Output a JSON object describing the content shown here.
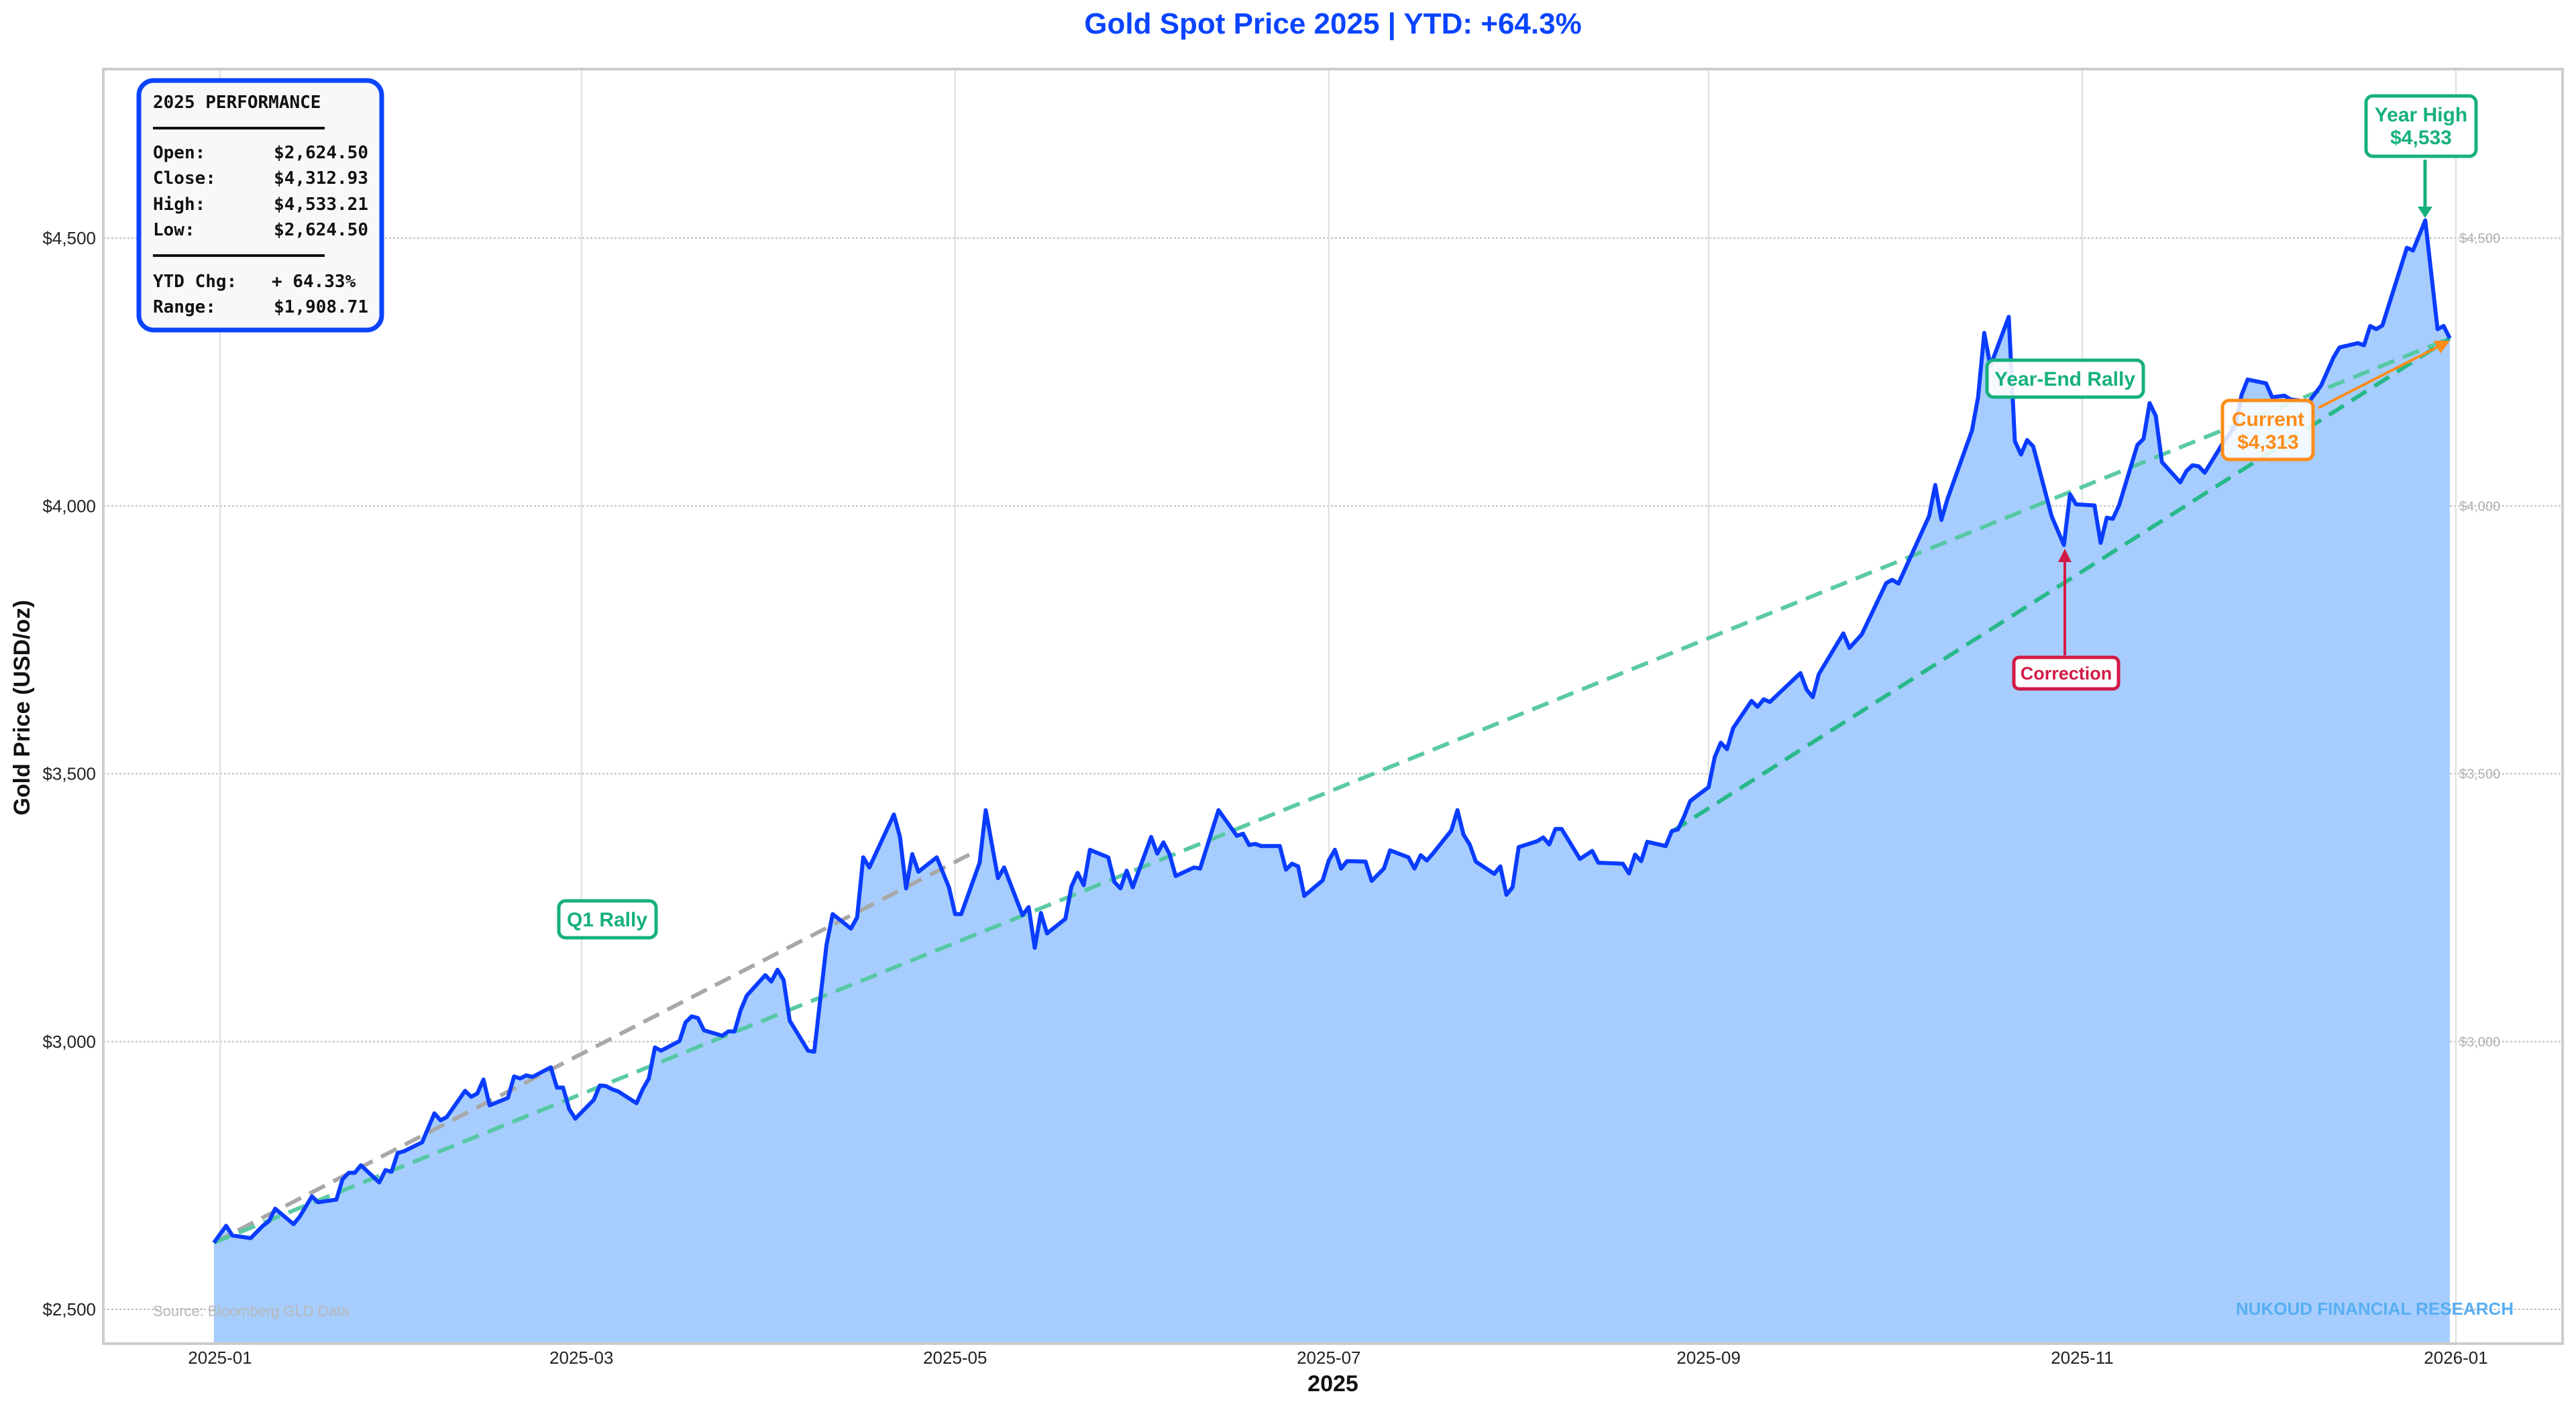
{
  "colors": {
    "title": "#0a44ff",
    "line": "#0a3cff",
    "fill": "#a6cdfd",
    "trend_full": "#52c8a0",
    "trend_h2": "#28b98a",
    "trend_q1": "#a8a8a8",
    "green_annotation": "#16b07e",
    "red_annotation": "#d11a45",
    "orange_annotation": "#ff8c1a",
    "watermark": "#58aef2",
    "source": "#b8b8b8",
    "stats_border": "#0a44ff"
  },
  "chart_data": {
    "type": "area",
    "title": "Gold Spot Price 2025 | YTD: +64.3%",
    "xlabel": "2025",
    "ylabel": "Gold Price (USD/oz)",
    "ylim": [
      2435,
      4800
    ],
    "xlim": [
      "2024-12-24",
      "2026-01-08"
    ],
    "grid": true,
    "y_ticks": [
      "$2,500",
      "$3,000",
      "$3,500",
      "$4,000",
      "$4,500"
    ],
    "y_tick_values": [
      2500,
      3000,
      3500,
      4000,
      4500
    ],
    "right_y_ticks": [
      "$3,000",
      "$3,500",
      "$4,000",
      "$4,500"
    ],
    "right_y_tick_values": [
      3000,
      3500,
      4000,
      4500
    ],
    "x_ticks": [
      "2025-01",
      "2025-03",
      "2025-05",
      "2025-07",
      "2025-09",
      "2025-11",
      "2026-01"
    ],
    "series": [
      {
        "dates": [
          "2024-12-31",
          "2025-01-02",
          "2025-01-03",
          "2025-01-06",
          "2025-01-08",
          "2025-01-09",
          "2025-01-10",
          "2025-01-13",
          "2025-01-14",
          "2025-01-16",
          "2025-01-17",
          "2025-01-20",
          "2025-01-21",
          "2025-01-22",
          "2025-01-23",
          "2025-01-24",
          "2025-01-27",
          "2025-01-28",
          "2025-01-29",
          "2025-01-30",
          "2025-01-31",
          "2025-02-03",
          "2025-02-05",
          "2025-02-06",
          "2025-02-07",
          "2025-02-10",
          "2025-02-11",
          "2025-02-12",
          "2025-02-13",
          "2025-02-14",
          "2025-02-17",
          "2025-02-18",
          "2025-02-19",
          "2025-02-20",
          "2025-02-21",
          "2025-02-24",
          "2025-02-25",
          "2025-02-26",
          "2025-02-27",
          "2025-02-28",
          "2025-03-03",
          "2025-03-04",
          "2025-03-05",
          "2025-03-06",
          "2025-03-07",
          "2025-03-10",
          "2025-03-11",
          "2025-03-12",
          "2025-03-13",
          "2025-03-14",
          "2025-03-17",
          "2025-03-18",
          "2025-03-19",
          "2025-03-20",
          "2025-03-21",
          "2025-03-24",
          "2025-03-25",
          "2025-03-26",
          "2025-03-27",
          "2025-03-28",
          "2025-03-31",
          "2025-04-01",
          "2025-04-02",
          "2025-04-03",
          "2025-04-04",
          "2025-04-07",
          "2025-04-08",
          "2025-04-10",
          "2025-04-11",
          "2025-04-14",
          "2025-04-15",
          "2025-04-16",
          "2025-04-17",
          "2025-04-21",
          "2025-04-22",
          "2025-04-23",
          "2025-04-24",
          "2025-04-25",
          "2025-04-28",
          "2025-04-30",
          "2025-05-01",
          "2025-05-02",
          "2025-05-05",
          "2025-05-06",
          "2025-05-08",
          "2025-05-09",
          "2025-05-12",
          "2025-05-13",
          "2025-05-14",
          "2025-05-15",
          "2025-05-16",
          "2025-05-19",
          "2025-05-20",
          "2025-05-21",
          "2025-05-22",
          "2025-05-23",
          "2025-05-26",
          "2025-05-27",
          "2025-05-28",
          "2025-05-29",
          "2025-05-30",
          "2025-06-02",
          "2025-06-03",
          "2025-06-04",
          "2025-06-05",
          "2025-06-06",
          "2025-06-09",
          "2025-06-10",
          "2025-06-13",
          "2025-06-16",
          "2025-06-17",
          "2025-06-18",
          "2025-06-19",
          "2025-06-20",
          "2025-06-23",
          "2025-06-24",
          "2025-06-25",
          "2025-06-26",
          "2025-06-27",
          "2025-06-30",
          "2025-07-01",
          "2025-07-02",
          "2025-07-03",
          "2025-07-04",
          "2025-07-07",
          "2025-07-08",
          "2025-07-10",
          "2025-07-11",
          "2025-07-14",
          "2025-07-15",
          "2025-07-16",
          "2025-07-17",
          "2025-07-18",
          "2025-07-21",
          "2025-07-22",
          "2025-07-23",
          "2025-07-24",
          "2025-07-25",
          "2025-07-28",
          "2025-07-29",
          "2025-07-30",
          "2025-07-31",
          "2025-08-01",
          "2025-08-04",
          "2025-08-05",
          "2025-08-06",
          "2025-08-07",
          "2025-08-08",
          "2025-08-11",
          "2025-08-13",
          "2025-08-14",
          "2025-08-18",
          "2025-08-19",
          "2025-08-20",
          "2025-08-21",
          "2025-08-22",
          "2025-08-25",
          "2025-08-26",
          "2025-08-27",
          "2025-08-28",
          "2025-08-29",
          "2025-09-01",
          "2025-09-02",
          "2025-09-03",
          "2025-09-04",
          "2025-09-05",
          "2025-09-08",
          "2025-09-09",
          "2025-09-10",
          "2025-09-11",
          "2025-09-16",
          "2025-09-17",
          "2025-09-18",
          "2025-09-19",
          "2025-09-23",
          "2025-09-24",
          "2025-09-26",
          "2025-09-30",
          "2025-10-01",
          "2025-10-02",
          "2025-10-07",
          "2025-10-08",
          "2025-10-09",
          "2025-10-10",
          "2025-10-14",
          "2025-10-15",
          "2025-10-16",
          "2025-10-17",
          "2025-10-20",
          "2025-10-21",
          "2025-10-22",
          "2025-10-23",
          "2025-10-24",
          "2025-10-27",
          "2025-10-29",
          "2025-10-30",
          "2025-10-31",
          "2025-11-03",
          "2025-11-04",
          "2025-11-05",
          "2025-11-06",
          "2025-11-07",
          "2025-11-10",
          "2025-11-11",
          "2025-11-12",
          "2025-11-13",
          "2025-11-14",
          "2025-11-17",
          "2025-11-18",
          "2025-11-19",
          "2025-11-20",
          "2025-11-21",
          "2025-11-24",
          "2025-11-26",
          "2025-11-27",
          "2025-11-28",
          "2025-12-01",
          "2025-12-02",
          "2025-12-04",
          "2025-12-05",
          "2025-12-08",
          "2025-12-10",
          "2025-12-12",
          "2025-12-13",
          "2025-12-16",
          "2025-12-17",
          "2025-12-18",
          "2025-12-19",
          "2025-12-20",
          "2025-12-24",
          "2025-12-25",
          "2025-12-27",
          "2025-12-29",
          "2025-12-30",
          "2025-12-31"
        ],
        "values": [
          2624.5,
          2656,
          2638,
          2633,
          2656,
          2665,
          2688,
          2659,
          2673,
          2711,
          2700,
          2705,
          2743,
          2755,
          2755,
          2769,
          2737,
          2760,
          2757,
          2792,
          2795,
          2812,
          2866,
          2853,
          2859,
          2908,
          2897,
          2903,
          2929,
          2881,
          2895,
          2935,
          2931,
          2937,
          2934,
          2952,
          2914,
          2914,
          2874,
          2856,
          2891,
          2918,
          2917,
          2911,
          2907,
          2885,
          2911,
          2931,
          2989,
          2983,
          3001,
          3036,
          3047,
          3044,
          3021,
          3011,
          3019,
          3019,
          3059,
          3086,
          3124,
          3112,
          3134,
          3115,
          3039,
          2983,
          2981,
          3180,
          3238,
          3211,
          3232,
          3344,
          3325,
          3424,
          3382,
          3286,
          3350,
          3317,
          3344,
          3288,
          3238,
          3238,
          3334,
          3432,
          3305,
          3325,
          3236,
          3251,
          3175,
          3240,
          3202,
          3229,
          3290,
          3315,
          3292,
          3358,
          3344,
          3298,
          3286,
          3319,
          3288,
          3382,
          3351,
          3372,
          3350,
          3309,
          3325,
          3323,
          3432,
          3384,
          3388,
          3367,
          3369,
          3365,
          3365,
          3321,
          3332,
          3327,
          3272,
          3301,
          3338,
          3358,
          3323,
          3337,
          3336,
          3300,
          3323,
          3357,
          3344,
          3323,
          3348,
          3338,
          3351,
          3394,
          3432,
          3386,
          3368,
          3336,
          3313,
          3327,
          3274,
          3288,
          3363,
          3374,
          3381,
          3368,
          3397,
          3397,
          3341,
          3356,
          3334,
          3332,
          3314,
          3349,
          3337,
          3373,
          3365,
          3393,
          3396,
          3420,
          3449,
          3475,
          3531,
          3558,
          3546,
          3585,
          3636,
          3625,
          3639,
          3634,
          3688,
          3657,
          3643,
          3686,
          3762,
          3735,
          3760,
          3856,
          3862,
          3855,
          3981,
          4039,
          3974,
          4013,
          4141,
          4203,
          4323,
          4261,
          4353,
          4121,
          4096,
          4123,
          4111,
          3981,
          3927,
          4022,
          4003,
          4001,
          3931,
          3978,
          3976,
          4001,
          4114,
          4125,
          4192,
          4168,
          4082,
          4044,
          4065,
          4076,
          4074,
          4062,
          4118,
          4150,
          4207,
          4236,
          4229,
          4203,
          4206,
          4199,
          4194,
          4225,
          4277,
          4296,
          4304,
          4300,
          4336,
          4330,
          4337,
          4482,
          4477,
          4533.21,
          4330,
          4336,
          4312.93
        ]
      }
    ],
    "trendlines": [
      {
        "id": "q1",
        "from": {
          "date": "2024-12-31",
          "value": 2624.5
        },
        "to": {
          "date": "2025-05-04",
          "value": 3353
        },
        "style": "dashed"
      },
      {
        "id": "full",
        "from": {
          "date": "2024-12-31",
          "value": 2624.5
        },
        "to": {
          "date": "2025-12-31",
          "value": 4312.93
        },
        "style": "dashed"
      },
      {
        "id": "h2",
        "from": {
          "date": "2025-08-26",
          "value": 3392
        },
        "to": {
          "date": "2025-12-31",
          "value": 4312.93
        },
        "style": "dashed"
      }
    ],
    "annotations": {
      "q1_rally": "Q1 Rally",
      "year_end_rally": "Year-End Rally",
      "correction": "Correction",
      "current_label": "Current",
      "current_value": "$4,313",
      "year_high_label": "Year High",
      "year_high_value": "$4,533"
    }
  },
  "stats_box": {
    "title": "2025 PERFORMANCE",
    "rows": [
      {
        "label": "Open:",
        "value": "$2,624.50"
      },
      {
        "label": "Close:",
        "value": "$4,312.93"
      },
      {
        "label": "High:",
        "value": "$4,533.21"
      },
      {
        "label": "Low:",
        "value": "$2,624.50"
      }
    ],
    "rows2": [
      {
        "label": "YTD Chg:",
        "value": "+ 64.33%"
      },
      {
        "label": "Range:",
        "value": "$1,908.71"
      }
    ]
  },
  "footer": {
    "source": "Source: Bloomberg GLD Data",
    "watermark": "NUKOUD FINANCIAL RESEARCH"
  }
}
